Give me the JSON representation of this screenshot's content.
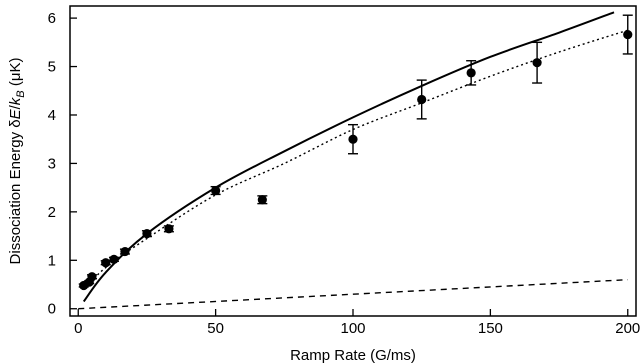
{
  "chart_data": {
    "type": "scatter",
    "xlabel": "Ramp Rate (G/ms)",
    "ylabel_parts": [
      "Dissociation Energy ",
      "δ",
      "E",
      "/",
      "k",
      "B",
      " (μK)"
    ],
    "xlim": [
      -3,
      203
    ],
    "ylim": [
      -0.15,
      6.25
    ],
    "x_ticks": [
      0,
      50,
      100,
      150,
      200
    ],
    "y_ticks": [
      0,
      1,
      2,
      3,
      4,
      5,
      6
    ],
    "grid": false,
    "legend": "none",
    "series": [
      {
        "kind": "points",
        "style": "filled-circle",
        "color": "#000000",
        "x": [
          2,
          4,
          5,
          10,
          13,
          17,
          25,
          33,
          50,
          67,
          100,
          125,
          143,
          167,
          200
        ],
        "y": [
          0.48,
          0.55,
          0.66,
          0.95,
          1.02,
          1.18,
          1.55,
          1.65,
          2.44,
          2.25,
          3.5,
          4.32,
          4.87,
          5.08,
          5.66
        ],
        "error": [
          0.03,
          0.03,
          0.04,
          0.04,
          0.04,
          0.05,
          0.06,
          0.06,
          0.08,
          0.08,
          0.3,
          0.4,
          0.25,
          0.42,
          0.4
        ]
      },
      {
        "kind": "curve",
        "style": "solid",
        "color": "#000000",
        "x": [
          2,
          10,
          25,
          50,
          75,
          100,
          125,
          150,
          175,
          195
        ],
        "y": [
          0.15,
          0.75,
          1.55,
          2.5,
          3.25,
          3.95,
          4.6,
          5.2,
          5.7,
          6.12
        ]
      },
      {
        "kind": "curve",
        "style": "dotted",
        "color": "#000000",
        "x": [
          2,
          10,
          25,
          50,
          75,
          100,
          125,
          150,
          175,
          200
        ],
        "y": [
          0.4,
          0.85,
          1.45,
          2.35,
          3.0,
          3.7,
          4.25,
          4.8,
          5.3,
          5.75
        ]
      },
      {
        "kind": "curve",
        "style": "dashed",
        "color": "#000000",
        "x": [
          0,
          200
        ],
        "y": [
          0.0,
          0.6
        ]
      }
    ]
  }
}
